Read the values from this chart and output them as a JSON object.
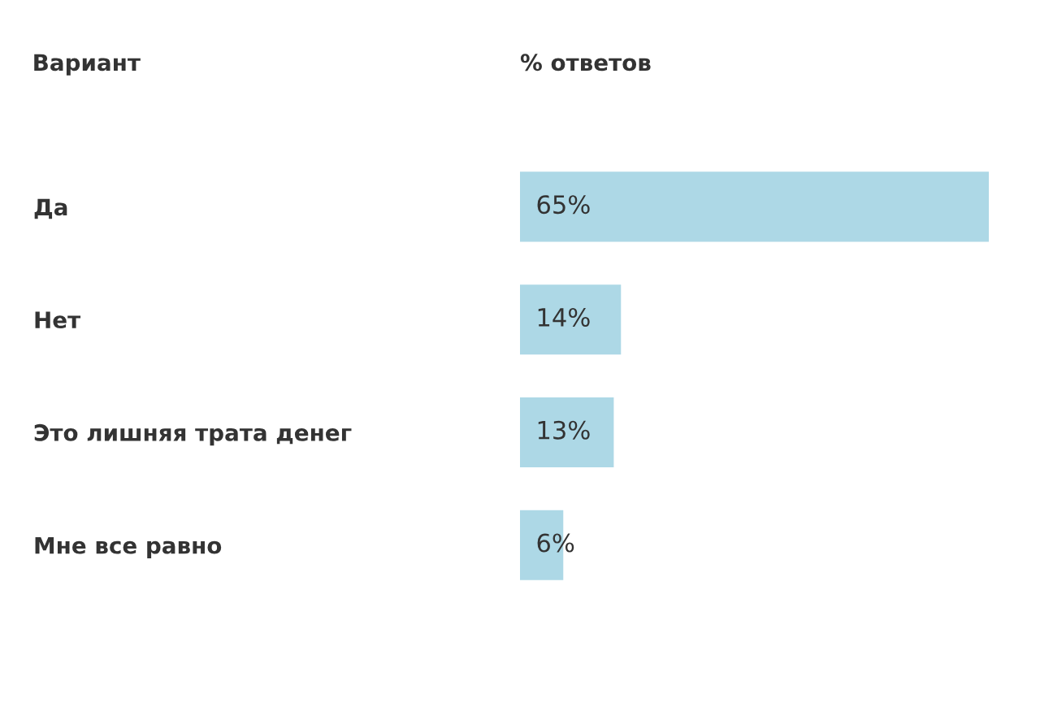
{
  "chart_data": {
    "type": "bar",
    "orientation": "horizontal",
    "xlabel": "% ответов",
    "ylabel": "Вариант",
    "categories": [
      "Да",
      "Нет",
      "Это лишняя трата денег",
      "Мне все равно"
    ],
    "values": [
      65,
      14,
      13,
      6
    ],
    "value_labels": [
      "65%",
      "14%",
      "13%",
      "6%"
    ],
    "color": "#add8e6"
  }
}
